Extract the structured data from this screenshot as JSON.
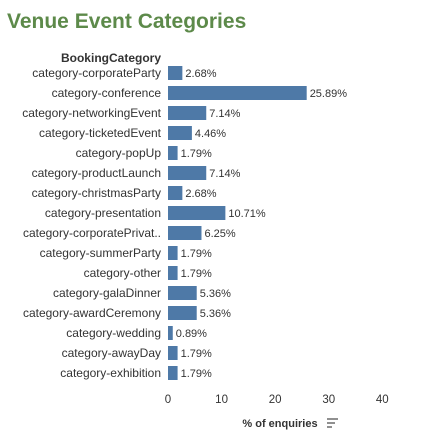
{
  "chart_data": {
    "type": "bar",
    "orientation": "horizontal",
    "title": "Venue Event Categories",
    "ylabel": "BookingCategory",
    "xlabel": "% of enquiries",
    "categories": [
      "category-corporateParty",
      "category-conference",
      "category-networkingEvent",
      "category-ticketedEvent",
      "category-popUp",
      "category-productLaunch",
      "category-christmasParty",
      "category-presentation",
      "category-corporatePrivat..",
      "category-summerParty",
      "category-other",
      "category-galaDinner",
      "category-awardCeremony",
      "category-wedding",
      "category-awayDay",
      "category-exhibition"
    ],
    "values": [
      2.68,
      25.89,
      7.14,
      4.46,
      1.79,
      7.14,
      2.68,
      10.71,
      6.25,
      1.79,
      1.79,
      5.36,
      5.36,
      0.89,
      1.79,
      1.79
    ],
    "value_labels": [
      "2.68%",
      "25.89%",
      "7.14%",
      "4.46%",
      "1.79%",
      "7.14%",
      "2.68%",
      "10.71%",
      "6.25%",
      "1.79%",
      "1.79%",
      "5.36%",
      "5.36%",
      "0.89%",
      "1.79%",
      "1.79%"
    ],
    "x_ticks": [
      0,
      10,
      20,
      30,
      40
    ],
    "xlim": [
      0,
      42
    ],
    "grid": false,
    "bar_color": "#4e79a7",
    "title_color": "#5d8a4a",
    "sort_icon": "sort-descending-icon"
  }
}
